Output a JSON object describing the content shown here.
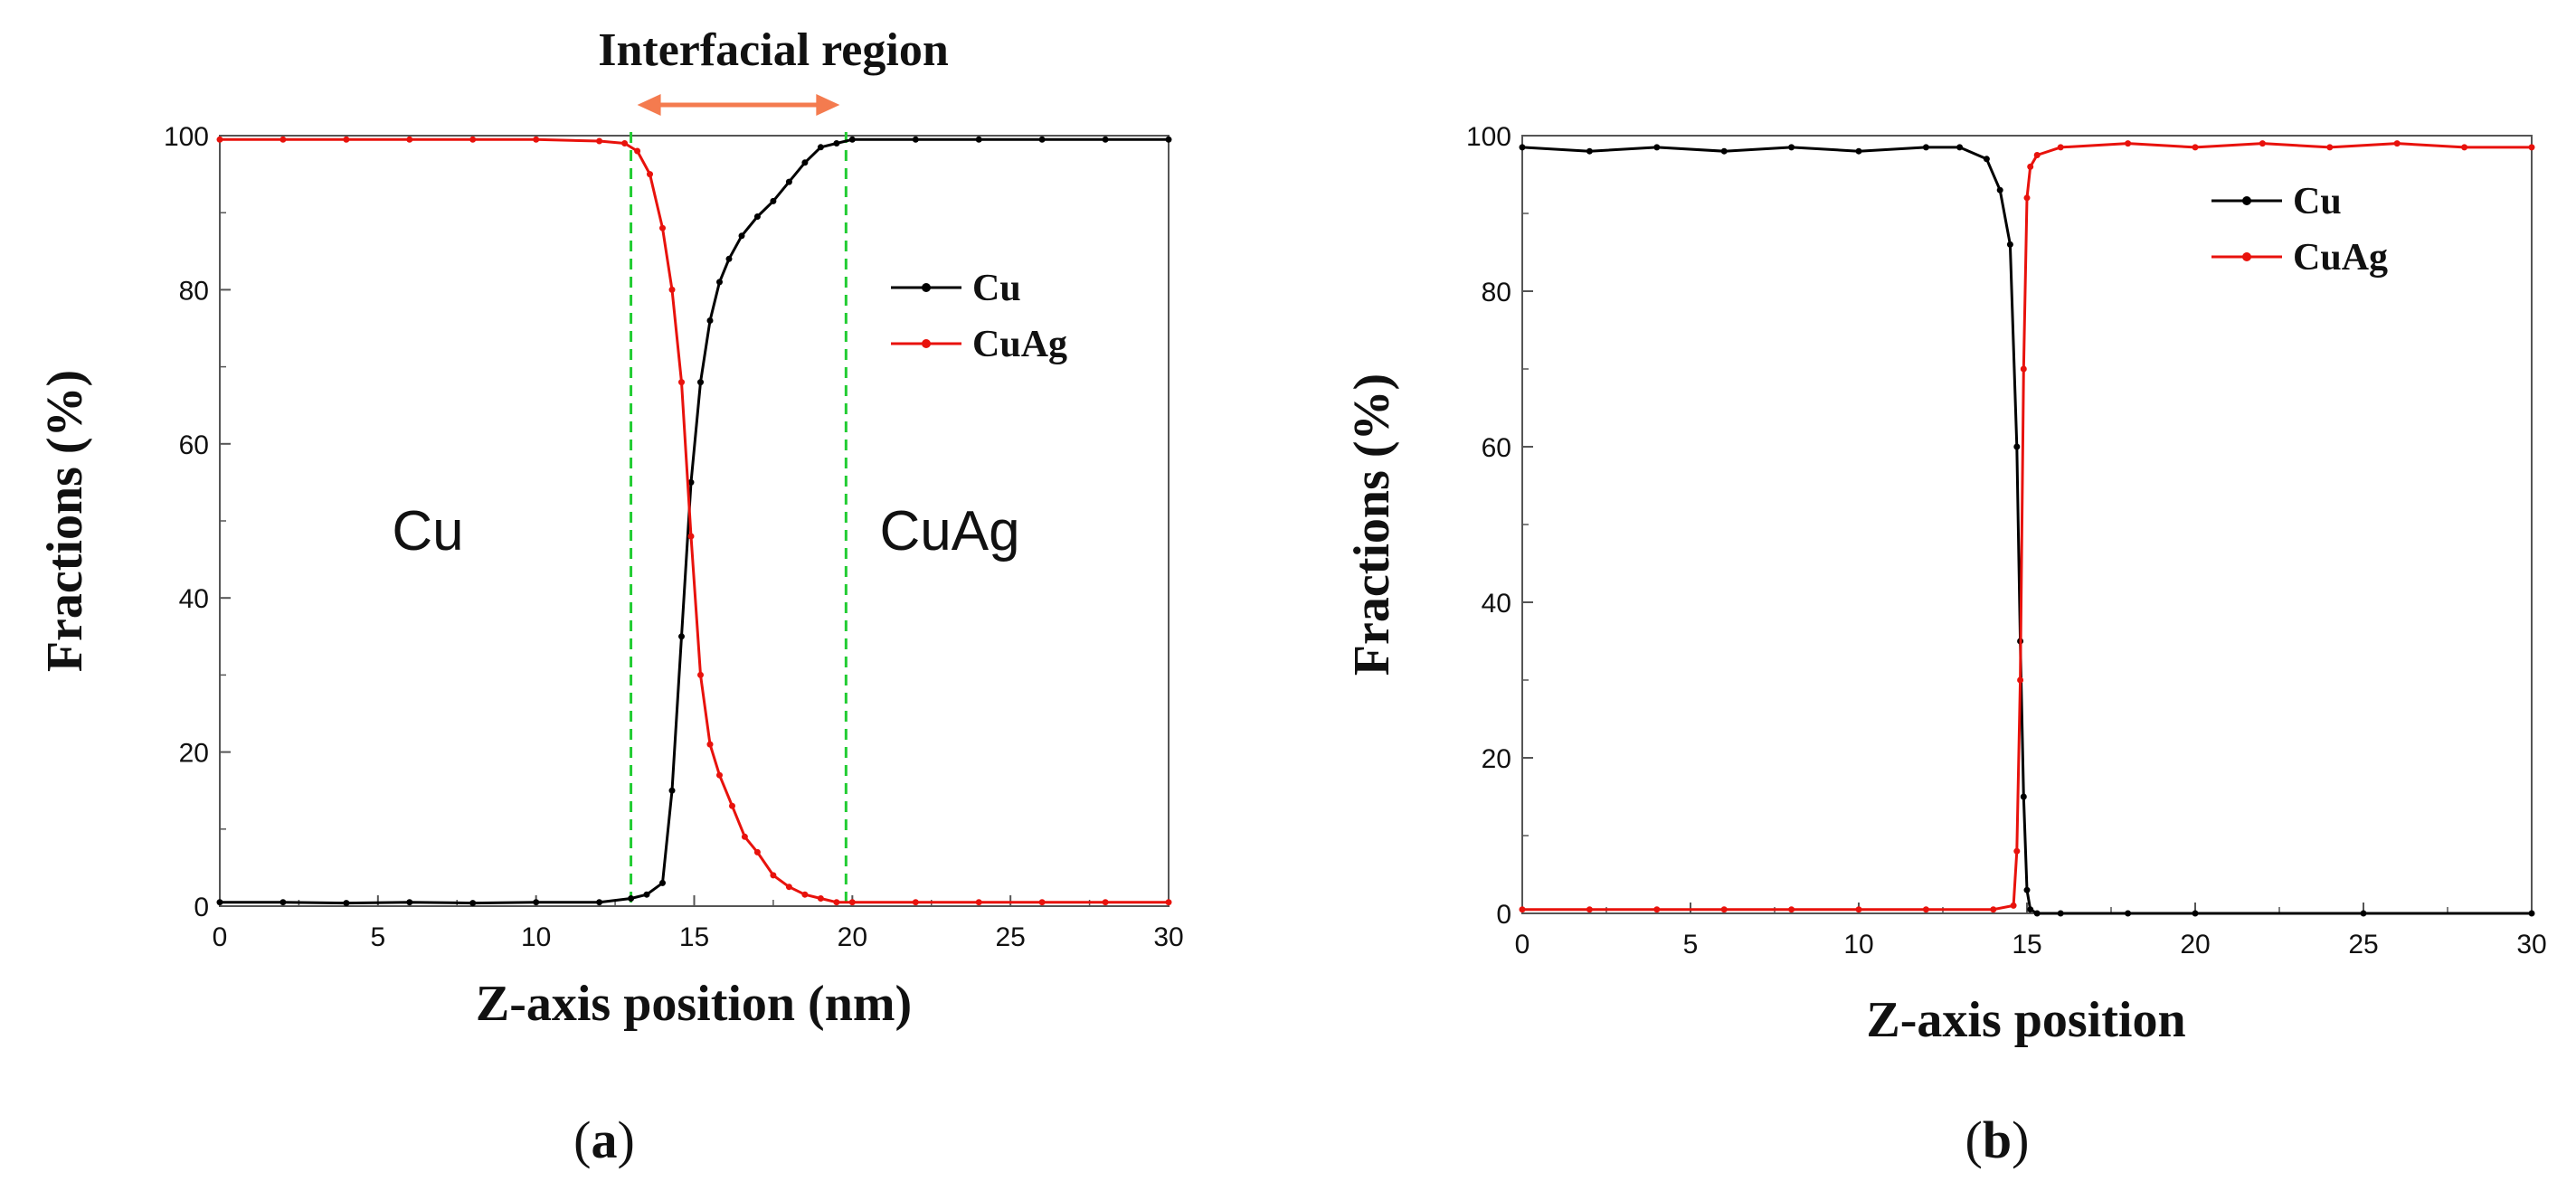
{
  "figure": {
    "captions": {
      "a_open": "(",
      "a_letter": "a",
      "a_close": ")",
      "b_open": "(",
      "b_letter": "b",
      "b_close": ")"
    }
  },
  "colors": {
    "cu": "#000000",
    "cuag": "#e8120c",
    "guide": "#22cc33",
    "arrow": "#f47b4f"
  },
  "chart_data": [
    {
      "id": "a",
      "type": "line",
      "title": "",
      "xlabel": "Z-axis position (nm)",
      "ylabel": "Fractions (%)",
      "xlim": [
        0,
        30
      ],
      "ylim": [
        0,
        100
      ],
      "xticks": [
        0,
        5,
        10,
        15,
        20,
        25,
        30
      ],
      "yticks": [
        0,
        20,
        40,
        60,
        80,
        100
      ],
      "legend": {
        "position": "top-right",
        "entries": [
          "Cu",
          "CuAg"
        ]
      },
      "annotations": {
        "top_label": "Interfacial region",
        "region_left": "Cu",
        "region_right": "CuAg",
        "guide_lines_x": [
          13,
          19.8
        ],
        "arrow_x_range": [
          13.2,
          19.6
        ]
      },
      "series": [
        {
          "name": "Cu",
          "x": [
            0,
            2,
            4,
            6,
            8,
            10,
            12,
            13,
            13.5,
            14,
            14.3,
            14.6,
            14.9,
            15.2,
            15.5,
            15.8,
            16.1,
            16.5,
            17,
            17.5,
            18,
            18.5,
            19,
            19.5,
            20,
            22,
            24,
            26,
            28,
            30
          ],
          "y": [
            0.5,
            0.5,
            0.4,
            0.5,
            0.4,
            0.5,
            0.5,
            1,
            1.5,
            3,
            15,
            35,
            55,
            68,
            76,
            81,
            84,
            87,
            89.5,
            91.5,
            94,
            96.5,
            98.5,
            99,
            99.5,
            99.5,
            99.5,
            99.5,
            99.5,
            99.5
          ]
        },
        {
          "name": "CuAg",
          "x": [
            0,
            2,
            4,
            6,
            8,
            10,
            12,
            12.8,
            13.2,
            13.6,
            14,
            14.3,
            14.6,
            14.9,
            15.2,
            15.5,
            15.8,
            16.2,
            16.6,
            17,
            17.5,
            18,
            18.5,
            19,
            19.5,
            20,
            22,
            24,
            26,
            28,
            30
          ],
          "y": [
            99.5,
            99.5,
            99.5,
            99.5,
            99.5,
            99.5,
            99.3,
            99,
            98,
            95,
            88,
            80,
            68,
            48,
            30,
            21,
            17,
            13,
            9,
            7,
            4,
            2.5,
            1.5,
            1,
            0.5,
            0.5,
            0.5,
            0.5,
            0.5,
            0.5,
            0.5
          ]
        }
      ]
    },
    {
      "id": "b",
      "type": "line",
      "title": "",
      "xlabel": "Z-axis position",
      "ylabel": "Fractions (%)",
      "xlim": [
        0,
        30
      ],
      "ylim": [
        0,
        100
      ],
      "xticks": [
        0,
        5,
        10,
        15,
        20,
        25,
        30
      ],
      "yticks": [
        0,
        20,
        40,
        60,
        80,
        100
      ],
      "legend": {
        "position": "top-right",
        "entries": [
          "Cu",
          "CuAg"
        ]
      },
      "series": [
        {
          "name": "Cu",
          "x": [
            0,
            2,
            4,
            6,
            8,
            10,
            12,
            13,
            13.8,
            14.2,
            14.5,
            14.7,
            14.8,
            14.9,
            15.0,
            15.1,
            15.3,
            16,
            18,
            20,
            25,
            30
          ],
          "y": [
            98.5,
            98,
            98.5,
            98,
            98.5,
            98,
            98.5,
            98.5,
            97,
            93,
            86,
            60,
            35,
            15,
            3,
            0.5,
            0,
            0,
            0,
            0,
            0,
            0
          ]
        },
        {
          "name": "CuAg",
          "x": [
            0,
            2,
            4,
            6,
            8,
            10,
            12,
            14,
            14.6,
            14.7,
            14.8,
            14.9,
            15.0,
            15.1,
            15.3,
            16,
            18,
            20,
            22,
            24,
            26,
            28,
            30
          ],
          "y": [
            0.5,
            0.5,
            0.5,
            0.5,
            0.5,
            0.5,
            0.5,
            0.5,
            1,
            8,
            30,
            70,
            92,
            96,
            97.5,
            98.5,
            99,
            98.5,
            99,
            98.5,
            99,
            98.5,
            98.5
          ]
        }
      ]
    }
  ]
}
